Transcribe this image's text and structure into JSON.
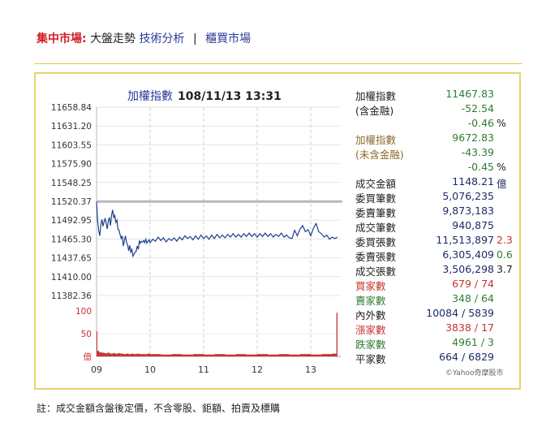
{
  "nav": {
    "label": "集中市場:",
    "current": "大盤走勢",
    "tech": "技術分析",
    "sep": "|",
    "otc": "櫃買市場"
  },
  "chart_title": {
    "name": "加權指數",
    "datetime": "108/11/13 13:31"
  },
  "stats": [
    {
      "label": "加權指數",
      "value": "11467.83",
      "extra": "",
      "label_color": "#222",
      "value_color": "#2e7d32",
      "extra_color": ""
    },
    {
      "label": "(含金融)",
      "value": "-52.54",
      "extra": "",
      "label_color": "#222",
      "value_color": "#2e7d32",
      "extra_color": ""
    },
    {
      "label": "",
      "value": "-0.46",
      "extra": "%",
      "label_color": "#222",
      "value_color": "#2e7d32",
      "extra_color": "#222"
    },
    {
      "label": "加權指數",
      "value": "9672.83",
      "extra": "",
      "label_color": "#8a6a2a",
      "value_color": "#2e7d32",
      "extra_color": ""
    },
    {
      "label": "(未含金融)",
      "value": "-43.39",
      "extra": "",
      "label_color": "#8a6a2a",
      "value_color": "#2e7d32",
      "extra_color": ""
    },
    {
      "label": "",
      "value": "-0.45",
      "extra": "%",
      "label_color": "#222",
      "value_color": "#2e7d32",
      "extra_color": "#222"
    },
    {
      "label": "成交金額",
      "value": "1148.21",
      "extra": "億",
      "label_color": "#222",
      "value_color": "#1e2a6a",
      "extra_color": "#1e2a6a"
    },
    {
      "label": "委買筆數",
      "value": "5,076,235",
      "extra": "",
      "label_color": "#222",
      "value_color": "#1e2a6a",
      "extra_color": ""
    },
    {
      "label": "委賣筆數",
      "value": "9,873,183",
      "extra": "",
      "label_color": "#222",
      "value_color": "#1e2a6a",
      "extra_color": ""
    },
    {
      "label": "成交筆數",
      "value": "940,875",
      "extra": "",
      "label_color": "#222",
      "value_color": "#1e2a6a",
      "extra_color": ""
    },
    {
      "label": "委買張數",
      "value": "11,513,897",
      "extra": "2.3",
      "label_color": "#222",
      "value_color": "#1e2a6a",
      "extra_color": "#c8322e"
    },
    {
      "label": "委賣張數",
      "value": "6,305,409",
      "extra": "0.6",
      "label_color": "#222",
      "value_color": "#1e2a6a",
      "extra_color": "#2e7d32"
    },
    {
      "label": "成交張數",
      "value": "3,506,298",
      "extra": "3.7",
      "label_color": "#222",
      "value_color": "#1e2a6a",
      "extra_color": "#222"
    },
    {
      "label": "買家數",
      "value": "679 / 74",
      "extra": "",
      "label_color": "#c8322e",
      "value_color": "#c8322e",
      "extra_color": ""
    },
    {
      "label": "賣家數",
      "value": "348 / 64",
      "extra": "",
      "label_color": "#2e7d32",
      "value_color": "#2e7d32",
      "extra_color": ""
    },
    {
      "label": "內外數",
      "value": "10084 / 5839",
      "extra": "",
      "label_color": "#222",
      "value_color": "#1e2a6a",
      "extra_color": ""
    },
    {
      "label": "漲家數",
      "value": "3838 / 17",
      "extra": "",
      "label_color": "#c8322e",
      "value_color": "#c8322e",
      "extra_color": ""
    },
    {
      "label": "跌家數",
      "value": "4961 / 3",
      "extra": "",
      "label_color": "#2e7d32",
      "value_color": "#2e7d32",
      "extra_color": ""
    },
    {
      "label": "平家數",
      "value": "664 / 6829",
      "extra": "",
      "label_color": "#222",
      "value_color": "#1e2a6a",
      "extra_color": ""
    }
  ],
  "credit": "©Yahoo奇摩股市",
  "footnote": "註：成交金額含盤後定價，不含零股、鉅額、拍賣及標購",
  "chart_data": {
    "type": "line",
    "y_ticks": [
      "11658.84",
      "11631.20",
      "11603.55",
      "11575.90",
      "11548.25",
      "11520.37",
      "11492.95",
      "11465.30",
      "11437.65",
      "11410.00",
      "11382.36"
    ],
    "ylim": [
      11382.36,
      11658.84
    ],
    "x_ticks": [
      "09",
      "10",
      "11",
      "12",
      "13"
    ],
    "prev_close": 11520.37,
    "grid": true,
    "series": [
      {
        "values": [
          [
            0.0,
            11520
          ],
          [
            0.02,
            11492
          ],
          [
            0.04,
            11478
          ],
          [
            0.06,
            11470
          ],
          [
            0.08,
            11486
          ],
          [
            0.1,
            11494
          ],
          [
            0.12,
            11484
          ],
          [
            0.14,
            11490
          ],
          [
            0.16,
            11496
          ],
          [
            0.18,
            11488
          ],
          [
            0.2,
            11480
          ],
          [
            0.22,
            11492
          ],
          [
            0.24,
            11497
          ],
          [
            0.26,
            11485
          ],
          [
            0.28,
            11500
          ],
          [
            0.3,
            11508
          ],
          [
            0.32,
            11497
          ],
          [
            0.34,
            11500
          ],
          [
            0.36,
            11490
          ],
          [
            0.38,
            11493
          ],
          [
            0.4,
            11480
          ],
          [
            0.42,
            11478
          ],
          [
            0.44,
            11472
          ],
          [
            0.46,
            11466
          ],
          [
            0.48,
            11470
          ],
          [
            0.5,
            11455
          ],
          [
            0.52,
            11463
          ],
          [
            0.54,
            11470
          ],
          [
            0.56,
            11460
          ],
          [
            0.58,
            11457
          ],
          [
            0.6,
            11448
          ],
          [
            0.62,
            11456
          ],
          [
            0.64,
            11446
          ],
          [
            0.66,
            11450
          ],
          [
            0.68,
            11440
          ],
          [
            0.7,
            11443
          ],
          [
            0.72,
            11446
          ],
          [
            0.74,
            11447
          ],
          [
            0.76,
            11455
          ],
          [
            0.78,
            11450
          ],
          [
            0.8,
            11463
          ],
          [
            0.82,
            11459
          ],
          [
            0.84,
            11462
          ],
          [
            0.86,
            11461
          ],
          [
            0.88,
            11463
          ],
          [
            0.9,
            11460
          ],
          [
            0.92,
            11465
          ],
          [
            0.94,
            11459
          ],
          [
            0.96,
            11462
          ],
          [
            0.98,
            11464
          ],
          [
            1.0,
            11460
          ],
          [
            1.05,
            11465
          ],
          [
            1.1,
            11462
          ],
          [
            1.15,
            11468
          ],
          [
            1.2,
            11463
          ],
          [
            1.25,
            11467
          ],
          [
            1.3,
            11461
          ],
          [
            1.35,
            11466
          ],
          [
            1.4,
            11463
          ],
          [
            1.45,
            11467
          ],
          [
            1.5,
            11462
          ],
          [
            1.55,
            11468
          ],
          [
            1.6,
            11464
          ],
          [
            1.65,
            11470
          ],
          [
            1.7,
            11466
          ],
          [
            1.75,
            11469
          ],
          [
            1.8,
            11464
          ],
          [
            1.85,
            11470
          ],
          [
            1.9,
            11465
          ],
          [
            1.95,
            11471
          ],
          [
            2.0,
            11466
          ],
          [
            2.05,
            11470
          ],
          [
            2.1,
            11465
          ],
          [
            2.15,
            11471
          ],
          [
            2.2,
            11466
          ],
          [
            2.25,
            11472
          ],
          [
            2.3,
            11467
          ],
          [
            2.35,
            11471
          ],
          [
            2.4,
            11467
          ],
          [
            2.45,
            11472
          ],
          [
            2.5,
            11468
          ],
          [
            2.55,
            11473
          ],
          [
            2.6,
            11468
          ],
          [
            2.65,
            11472
          ],
          [
            2.7,
            11468
          ],
          [
            2.75,
            11473
          ],
          [
            2.8,
            11469
          ],
          [
            2.85,
            11474
          ],
          [
            2.9,
            11469
          ],
          [
            2.95,
            11473
          ],
          [
            3.0,
            11468
          ],
          [
            3.05,
            11473
          ],
          [
            3.1,
            11469
          ],
          [
            3.15,
            11474
          ],
          [
            3.2,
            11469
          ],
          [
            3.25,
            11473
          ],
          [
            3.3,
            11468
          ],
          [
            3.35,
            11472
          ],
          [
            3.4,
            11469
          ],
          [
            3.45,
            11474
          ],
          [
            3.5,
            11468
          ],
          [
            3.55,
            11471
          ],
          [
            3.6,
            11467
          ],
          [
            3.65,
            11466
          ],
          [
            3.7,
            11478
          ],
          [
            3.75,
            11470
          ],
          [
            3.8,
            11480
          ],
          [
            3.85,
            11485
          ],
          [
            3.9,
            11476
          ],
          [
            3.95,
            11479
          ],
          [
            4.0,
            11470
          ],
          [
            4.05,
            11481
          ],
          [
            4.1,
            11488
          ],
          [
            4.15,
            11476
          ],
          [
            4.2,
            11473
          ],
          [
            4.25,
            11468
          ],
          [
            4.3,
            11471
          ],
          [
            4.35,
            11465
          ],
          [
            4.4,
            11468
          ],
          [
            4.45,
            11466
          ],
          [
            4.5,
            11467.83
          ]
        ]
      }
    ],
    "volume": {
      "y_ticks": [
        "100",
        "50",
        "億"
      ],
      "ylim": [
        0,
        100
      ],
      "values": [
        [
          0.0,
          55
        ],
        [
          0.01,
          12
        ],
        [
          0.05,
          9
        ],
        [
          0.1,
          8
        ],
        [
          0.15,
          7
        ],
        [
          0.2,
          8
        ],
        [
          0.25,
          6
        ],
        [
          0.3,
          7
        ],
        [
          0.35,
          6
        ],
        [
          0.4,
          7
        ],
        [
          0.45,
          6
        ],
        [
          0.5,
          5
        ],
        [
          0.55,
          6
        ],
        [
          0.6,
          5
        ],
        [
          0.65,
          6
        ],
        [
          0.7,
          5
        ],
        [
          0.75,
          6
        ],
        [
          0.8,
          5
        ],
        [
          0.85,
          5
        ],
        [
          0.9,
          5
        ],
        [
          0.95,
          6
        ],
        [
          1.0,
          5
        ],
        [
          1.2,
          4
        ],
        [
          1.4,
          5
        ],
        [
          1.6,
          4
        ],
        [
          1.8,
          5
        ],
        [
          2.0,
          4
        ],
        [
          2.2,
          5
        ],
        [
          2.4,
          4
        ],
        [
          2.6,
          5
        ],
        [
          2.8,
          4
        ],
        [
          3.0,
          5
        ],
        [
          3.2,
          4
        ],
        [
          3.4,
          5
        ],
        [
          3.6,
          4
        ],
        [
          3.8,
          5
        ],
        [
          4.0,
          4
        ],
        [
          4.2,
          5
        ],
        [
          4.4,
          6
        ],
        [
          4.48,
          96
        ]
      ]
    }
  }
}
